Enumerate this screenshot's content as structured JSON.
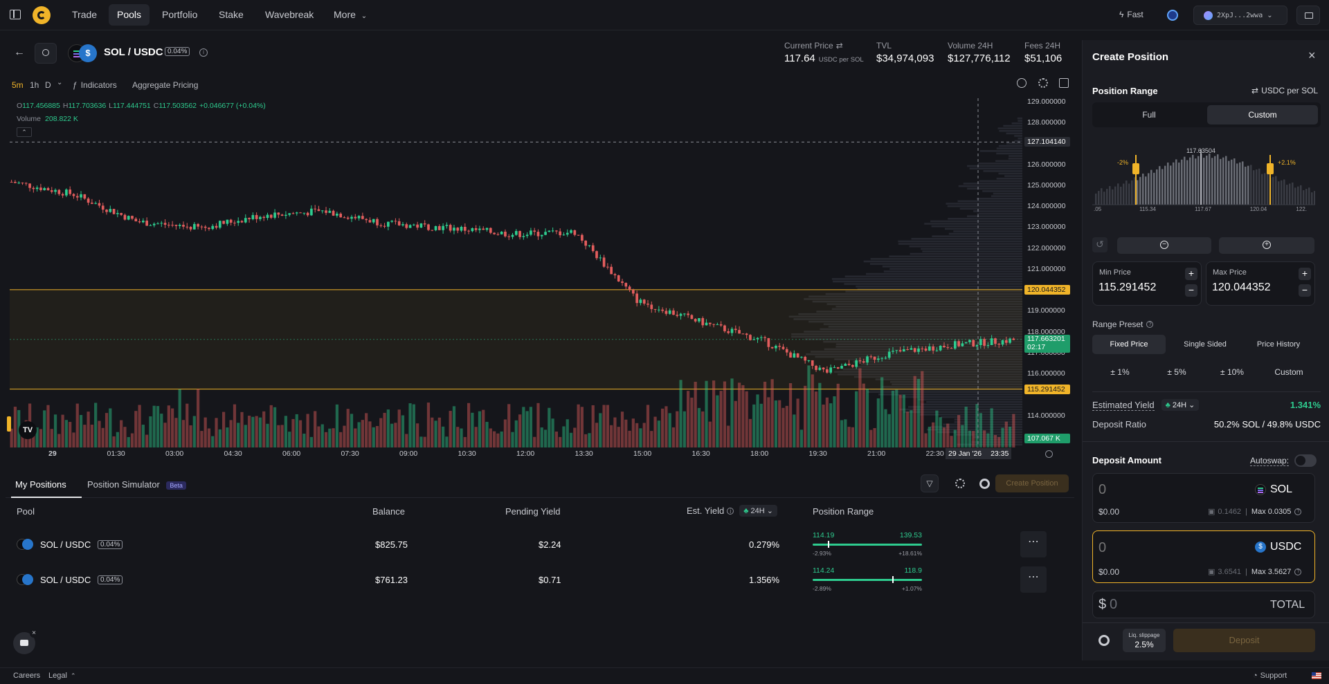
{
  "nav": {
    "items": [
      "Trade",
      "Pools",
      "Portfolio",
      "Stake",
      "Wavebreak",
      "More"
    ],
    "speed": "Fast",
    "wallet": "2XpJ...2wwa"
  },
  "pair": {
    "name": "SOL / USDC",
    "fee": "0.04%"
  },
  "stats": {
    "current_price_label": "Current Price",
    "current_price": "117.64",
    "current_price_unit": "USDC per SOL",
    "tvl_label": "TVL",
    "tvl": "$34,974,093",
    "volume_label": "Volume 24H",
    "volume": "$127,776,112",
    "fees_label": "Fees 24H",
    "fees": "$51,106"
  },
  "toolbar": {
    "timeframes": [
      "5m",
      "1h",
      "D"
    ],
    "indicators": "Indicators",
    "aggregate": "Aggregate Pricing"
  },
  "ohlc": {
    "o_label": "O",
    "o": "117.456885",
    "h_label": "H",
    "h": "117.703636",
    "l_label": "L",
    "l": "117.444751",
    "c_label": "C",
    "c": "117.503562",
    "change": "+0.046677 (+0.04%)",
    "volume_label": "Volume",
    "volume": "208.822 K"
  },
  "price_axis": {
    "ticks": [
      "129.000000",
      "128.000000",
      "127.104140",
      "126.000000",
      "125.000000",
      "124.000000",
      "123.000000",
      "122.000000",
      "121.000000",
      "120.044352",
      "119.000000",
      "118.000000",
      "117.000000",
      "116.000000",
      "115.291452",
      "114.000000",
      "113.000000"
    ],
    "max_label": "120.044352",
    "min_label": "115.291452",
    "current_label": "117.663201",
    "countdown": "02:17",
    "crosshair_label": "127.104140",
    "volume_label": "107.067 K"
  },
  "time_axis": {
    "ticks": [
      "29",
      "01:30",
      "03:00",
      "04:30",
      "06:00",
      "07:30",
      "09:00",
      "10:30",
      "12:00",
      "13:30",
      "15:00",
      "16:30",
      "18:00",
      "19:30",
      "21:00",
      "22:30"
    ],
    "crosshair_date": "29 Jan '26",
    "crosshair_time": "23:35"
  },
  "chart_data": {
    "type": "candlestick",
    "pair": "SOL / USDC",
    "interval": "5m",
    "ylim": [
      112.5,
      129.2
    ],
    "x": [
      "29",
      "01:30",
      "03:00",
      "04:30",
      "06:00",
      "07:30",
      "09:00",
      "10:30",
      "12:00",
      "13:30",
      "15:00",
      "16:30",
      "18:00",
      "19:30",
      "21:00",
      "22:30",
      "23:35"
    ],
    "close_approx": [
      125.2,
      124.6,
      123.3,
      123.0,
      123.6,
      123.8,
      123.2,
      123.0,
      122.7,
      122.8,
      119.5,
      118.5,
      117.6,
      116.1,
      117.0,
      117.4,
      117.64
    ],
    "range_lines": {
      "max": 120.044352,
      "min": 115.291452
    },
    "current": 117.663201
  },
  "bottom": {
    "tabs": [
      "My Positions",
      "Position Simulator"
    ],
    "beta": "Beta",
    "create_button": "Create Position",
    "headers": {
      "pool": "Pool",
      "balance": "Balance",
      "pending": "Pending Yield",
      "est_yield": "Est. Yield",
      "period": "24H",
      "range": "Position Range"
    },
    "positions": [
      {
        "pair": "SOL / USDC",
        "fee": "0.04%",
        "balance": "$825.75",
        "pending": "$2.24",
        "yield": "0.279%",
        "low": "114.19",
        "high": "139.53",
        "low_pct": "-2.93%",
        "high_pct": "+18.61%",
        "marker": 0.14
      },
      {
        "pair": "SOL / USDC",
        "fee": "0.04%",
        "balance": "$761.23",
        "pending": "$0.71",
        "yield": "1.356%",
        "low": "114.24",
        "high": "118.9",
        "low_pct": "-2.89%",
        "high_pct": "+1.07%",
        "marker": 0.73
      }
    ]
  },
  "panel": {
    "title": "Create Position",
    "range_label": "Position Range",
    "range_unit": "USDC per SOL",
    "full": "Full",
    "custom": "Custom",
    "hist_center": "117.63504",
    "hist_left_pct": "-2%",
    "hist_right_pct": "+2.1%",
    "hist_ticks": [
      ".05",
      "115.34",
      "117.67",
      "120.04",
      "122."
    ],
    "min_price_label": "Min Price",
    "min_price": "115.291452",
    "max_price_label": "Max Price",
    "max_price": "120.044352",
    "preset_label": "Range Preset",
    "preset_tabs": [
      "Fixed Price",
      "Single Sided",
      "Price History"
    ],
    "preset_values": [
      "± 1%",
      "± 5%",
      "± 10%",
      "Custom"
    ],
    "est_yield_label": "Estimated Yield",
    "est_yield_period": "24H",
    "est_yield": "1.341%",
    "deposit_ratio_label": "Deposit Ratio",
    "deposit_ratio": "50.2% SOL / 49.8% USDC",
    "deposit_amount_label": "Deposit Amount",
    "autoswap_label": "Autoswap:",
    "sol": {
      "amount": "0",
      "token": "SOL",
      "usd": "$0.00",
      "balance": "0.1462",
      "max": "Max 0.0305"
    },
    "usdc": {
      "amount": "0",
      "token": "USDC",
      "usd": "$0.00",
      "balance": "3.6541",
      "max": "Max 3.5627"
    },
    "total_prefix": "$",
    "total_value": "0",
    "total_label": "TOTAL",
    "slippage_label": "Liq. slippage",
    "slippage": "2.5%",
    "deposit_button": "Deposit"
  },
  "footer": {
    "careers": "Careers",
    "legal": "Legal",
    "support": "Support"
  },
  "colors": {
    "up": "#2ecc8f",
    "down": "#e25d5d",
    "range": "#f0b429",
    "accent_button": "#3a2f1e"
  }
}
